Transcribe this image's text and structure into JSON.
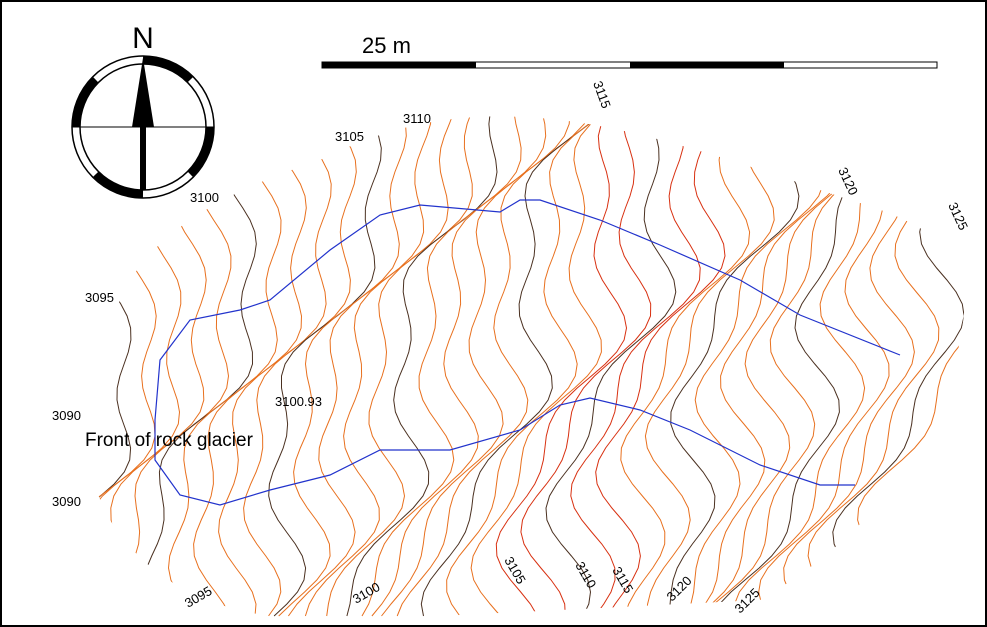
{
  "north_label": "N",
  "scale_bar": {
    "label": "25 m"
  },
  "spot_height": "3100.93",
  "annotation": "Front of rock glacier",
  "contour_labels": [
    "3110",
    "3105",
    "3115",
    "3100",
    "3120",
    "3125",
    "3095",
    "3090",
    "3090",
    "3095",
    "3100",
    "3105",
    "3110",
    "3115",
    "3120",
    "3125"
  ]
}
